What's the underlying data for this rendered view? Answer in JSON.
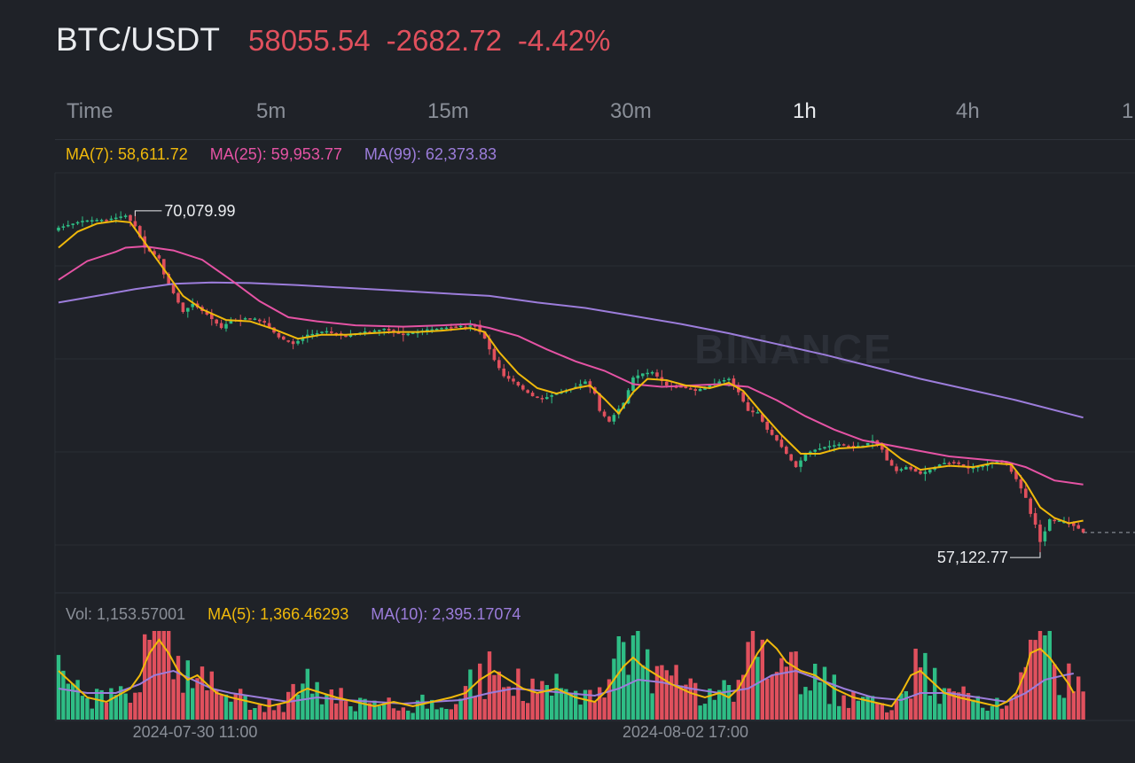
{
  "header": {
    "pair": "BTC/USDT",
    "last_price": "58055.54",
    "change": "-2682.72",
    "change_pct": "-4.42%"
  },
  "tabs": [
    {
      "label": "Time",
      "active": false
    },
    {
      "label": "5m",
      "active": false
    },
    {
      "label": "15m",
      "active": false
    },
    {
      "label": "30m",
      "active": false
    },
    {
      "label": "1h",
      "active": true
    },
    {
      "label": "4h",
      "active": false
    },
    {
      "label": "1",
      "active": false
    }
  ],
  "price_legend": {
    "ma7": "MA(7): 58,611.72",
    "ma25": "MA(25): 59,953.77",
    "ma99": "MA(99): 62,373.83"
  },
  "volume_legend": {
    "vol": "Vol: 1,153.57001",
    "ma5": "MA(5): 1,366.46293",
    "ma10": "MA(10): 2,395.17074"
  },
  "annotations": {
    "high_label": "70,079.99",
    "low_label": "57,122.77"
  },
  "watermark": "BINANCE",
  "colors": {
    "background": "#1f2228",
    "up": "#2ebd85",
    "down": "#e0505d",
    "ma7": "#f0b90b",
    "ma25": "#e553a4",
    "ma99": "#9c7ddb"
  },
  "chart_data": {
    "type": "candlestick",
    "interval": "1h",
    "x_ticks": [
      "2024-07-30 11:00",
      "2024-08-02 17:00"
    ],
    "high": 70079.99,
    "low": 57122.77,
    "last": 58055.54,
    "price_path": [
      [
        0,
        69450
      ],
      [
        5,
        69700
      ],
      [
        10,
        69750
      ],
      [
        14,
        69900
      ],
      [
        16,
        69500
      ],
      [
        18,
        68700
      ],
      [
        21,
        68300
      ],
      [
        22,
        67700
      ],
      [
        24,
        67000
      ],
      [
        26,
        66300
      ],
      [
        28,
        66600
      ],
      [
        31,
        66200
      ],
      [
        34,
        65700
      ],
      [
        36,
        66000
      ],
      [
        40,
        66050
      ],
      [
        43,
        65900
      ],
      [
        46,
        65350
      ],
      [
        49,
        65100
      ],
      [
        52,
        65450
      ],
      [
        56,
        65550
      ],
      [
        60,
        65400
      ],
      [
        64,
        65550
      ],
      [
        68,
        65650
      ],
      [
        72,
        65450
      ],
      [
        76,
        65600
      ],
      [
        80,
        65700
      ],
      [
        84,
        65750
      ],
      [
        87,
        65800
      ],
      [
        89,
        65300
      ],
      [
        91,
        64500
      ],
      [
        93,
        63900
      ],
      [
        95,
        63700
      ],
      [
        97,
        63400
      ],
      [
        99,
        63150
      ],
      [
        101,
        63050
      ],
      [
        104,
        63250
      ],
      [
        106,
        63350
      ],
      [
        108,
        63500
      ],
      [
        110,
        63700
      ],
      [
        112,
        63250
      ],
      [
        113,
        62600
      ],
      [
        115,
        62200
      ],
      [
        116,
        62450
      ],
      [
        118,
        62900
      ],
      [
        120,
        63850
      ],
      [
        122,
        64000
      ],
      [
        124,
        64050
      ],
      [
        127,
        63550
      ],
      [
        130,
        63500
      ],
      [
        133,
        63350
      ],
      [
        136,
        63550
      ],
      [
        138,
        63700
      ],
      [
        140,
        63800
      ],
      [
        142,
        63300
      ],
      [
        144,
        62600
      ],
      [
        146,
        62500
      ],
      [
        148,
        61900
      ],
      [
        150,
        61500
      ],
      [
        152,
        61000
      ],
      [
        154,
        60500
      ],
      [
        156,
        61000
      ],
      [
        158,
        61150
      ],
      [
        160,
        61250
      ],
      [
        163,
        61350
      ],
      [
        166,
        61250
      ],
      [
        168,
        61300
      ],
      [
        170,
        61500
      ],
      [
        172,
        61150
      ],
      [
        173,
        60750
      ],
      [
        175,
        60350
      ],
      [
        177,
        60500
      ],
      [
        180,
        60250
      ],
      [
        182,
        60400
      ],
      [
        184,
        60600
      ],
      [
        187,
        60700
      ],
      [
        190,
        60450
      ],
      [
        193,
        60550
      ],
      [
        196,
        60750
      ],
      [
        198,
        60600
      ],
      [
        200,
        60050
      ],
      [
        202,
        59350
      ],
      [
        203,
        58750
      ],
      [
        204,
        58350
      ],
      [
        205,
        57700
      ],
      [
        206,
        58100
      ],
      [
        207,
        58550
      ],
      [
        209,
        58450
      ],
      [
        211,
        58400
      ],
      [
        213,
        58200
      ],
      [
        214,
        58055.54
      ]
    ],
    "ma7_path": [
      [
        0,
        68700
      ],
      [
        4,
        69300
      ],
      [
        8,
        69600
      ],
      [
        12,
        69700
      ],
      [
        15,
        69650
      ],
      [
        18,
        68900
      ],
      [
        22,
        67900
      ],
      [
        26,
        66900
      ],
      [
        30,
        66400
      ],
      [
        35,
        66000
      ],
      [
        40,
        65950
      ],
      [
        45,
        65650
      ],
      [
        50,
        65300
      ],
      [
        55,
        65450
      ],
      [
        60,
        65450
      ],
      [
        65,
        65500
      ],
      [
        70,
        65550
      ],
      [
        75,
        65550
      ],
      [
        80,
        65600
      ],
      [
        86,
        65700
      ],
      [
        89,
        65550
      ],
      [
        92,
        64800
      ],
      [
        96,
        64000
      ],
      [
        100,
        63450
      ],
      [
        104,
        63250
      ],
      [
        108,
        63450
      ],
      [
        111,
        63550
      ],
      [
        114,
        63050
      ],
      [
        117,
        62500
      ],
      [
        120,
        63300
      ],
      [
        123,
        63800
      ],
      [
        127,
        63750
      ],
      [
        131,
        63550
      ],
      [
        136,
        63450
      ],
      [
        140,
        63650
      ],
      [
        143,
        63350
      ],
      [
        147,
        62500
      ],
      [
        151,
        61700
      ],
      [
        155,
        61000
      ],
      [
        159,
        61000
      ],
      [
        163,
        61200
      ],
      [
        168,
        61250
      ],
      [
        172,
        61350
      ],
      [
        176,
        60800
      ],
      [
        180,
        60400
      ],
      [
        186,
        60550
      ],
      [
        191,
        60500
      ],
      [
        195,
        60650
      ],
      [
        199,
        60600
      ],
      [
        202,
        59900
      ],
      [
        205,
        59000
      ],
      [
        208,
        58600
      ],
      [
        211,
        58400
      ],
      [
        214,
        58500
      ]
    ],
    "ma25_path": [
      [
        0,
        67500
      ],
      [
        6,
        68200
      ],
      [
        12,
        68550
      ],
      [
        14,
        68700
      ],
      [
        18,
        68750
      ],
      [
        24,
        68600
      ],
      [
        30,
        68250
      ],
      [
        36,
        67500
      ],
      [
        42,
        66700
      ],
      [
        48,
        66100
      ],
      [
        54,
        65950
      ],
      [
        62,
        65800
      ],
      [
        72,
        65750
      ],
      [
        80,
        65800
      ],
      [
        86,
        65850
      ],
      [
        90,
        65700
      ],
      [
        96,
        65400
      ],
      [
        102,
        64900
      ],
      [
        108,
        64450
      ],
      [
        114,
        64100
      ],
      [
        120,
        63600
      ],
      [
        126,
        63500
      ],
      [
        132,
        63550
      ],
      [
        138,
        63600
      ],
      [
        144,
        63500
      ],
      [
        150,
        63000
      ],
      [
        156,
        62400
      ],
      [
        162,
        61900
      ],
      [
        168,
        61500
      ],
      [
        174,
        61300
      ],
      [
        180,
        61100
      ],
      [
        186,
        60900
      ],
      [
        192,
        60800
      ],
      [
        198,
        60700
      ],
      [
        202,
        60500
      ],
      [
        208,
        60000
      ],
      [
        214,
        59850
      ]
    ],
    "ma99_path": [
      [
        0,
        66650
      ],
      [
        8,
        66900
      ],
      [
        16,
        67150
      ],
      [
        24,
        67350
      ],
      [
        32,
        67400
      ],
      [
        40,
        67380
      ],
      [
        50,
        67300
      ],
      [
        60,
        67200
      ],
      [
        70,
        67100
      ],
      [
        80,
        67000
      ],
      [
        90,
        66900
      ],
      [
        100,
        66650
      ],
      [
        110,
        66450
      ],
      [
        120,
        66150
      ],
      [
        130,
        65850
      ],
      [
        140,
        65500
      ],
      [
        150,
        65100
      ],
      [
        160,
        64700
      ],
      [
        170,
        64250
      ],
      [
        180,
        63800
      ],
      [
        190,
        63400
      ],
      [
        200,
        63000
      ],
      [
        214,
        62350
      ]
    ],
    "volume_ma5_path": [
      [
        0,
        0.55
      ],
      [
        3,
        0.4
      ],
      [
        6,
        0.25
      ],
      [
        10,
        0.2
      ],
      [
        15,
        0.35
      ],
      [
        17,
        0.5
      ],
      [
        19,
        0.75
      ],
      [
        21,
        0.9
      ],
      [
        23,
        0.75
      ],
      [
        25,
        0.55
      ],
      [
        27,
        0.45
      ],
      [
        29,
        0.5
      ],
      [
        31,
        0.4
      ],
      [
        33,
        0.3
      ],
      [
        36,
        0.25
      ],
      [
        40,
        0.2
      ],
      [
        44,
        0.15
      ],
      [
        48,
        0.2
      ],
      [
        50,
        0.3
      ],
      [
        52,
        0.35
      ],
      [
        55,
        0.3
      ],
      [
        58,
        0.25
      ],
      [
        62,
        0.2
      ],
      [
        66,
        0.15
      ],
      [
        70,
        0.2
      ],
      [
        74,
        0.15
      ],
      [
        78,
        0.2
      ],
      [
        82,
        0.25
      ],
      [
        85,
        0.3
      ],
      [
        88,
        0.45
      ],
      [
        91,
        0.55
      ],
      [
        94,
        0.45
      ],
      [
        97,
        0.35
      ],
      [
        100,
        0.3
      ],
      [
        104,
        0.35
      ],
      [
        108,
        0.25
      ],
      [
        112,
        0.2
      ],
      [
        114,
        0.3
      ],
      [
        116,
        0.45
      ],
      [
        118,
        0.6
      ],
      [
        120,
        0.7
      ],
      [
        122,
        0.6
      ],
      [
        125,
        0.5
      ],
      [
        128,
        0.4
      ],
      [
        132,
        0.3
      ],
      [
        135,
        0.25
      ],
      [
        138,
        0.3
      ],
      [
        140,
        0.25
      ],
      [
        142,
        0.35
      ],
      [
        144,
        0.55
      ],
      [
        146,
        0.75
      ],
      [
        148,
        0.9
      ],
      [
        150,
        0.8
      ],
      [
        152,
        0.65
      ],
      [
        155,
        0.55
      ],
      [
        158,
        0.5
      ],
      [
        162,
        0.35
      ],
      [
        166,
        0.25
      ],
      [
        170,
        0.2
      ],
      [
        174,
        0.15
      ],
      [
        176,
        0.3
      ],
      [
        178,
        0.5
      ],
      [
        180,
        0.55
      ],
      [
        182,
        0.45
      ],
      [
        185,
        0.3
      ],
      [
        188,
        0.25
      ],
      [
        192,
        0.2
      ],
      [
        196,
        0.15
      ],
      [
        198,
        0.2
      ],
      [
        200,
        0.3
      ],
      [
        202,
        0.55
      ],
      [
        203,
        0.75
      ],
      [
        205,
        0.8
      ],
      [
        207,
        0.7
      ],
      [
        209,
        0.55
      ],
      [
        211,
        0.4
      ],
      [
        212,
        0.3
      ]
    ],
    "volume_ma10_path": [
      [
        0,
        0.35
      ],
      [
        6,
        0.3
      ],
      [
        12,
        0.3
      ],
      [
        17,
        0.4
      ],
      [
        20,
        0.5
      ],
      [
        24,
        0.55
      ],
      [
        28,
        0.45
      ],
      [
        32,
        0.35
      ],
      [
        36,
        0.3
      ],
      [
        42,
        0.25
      ],
      [
        48,
        0.2
      ],
      [
        54,
        0.25
      ],
      [
        60,
        0.22
      ],
      [
        66,
        0.2
      ],
      [
        72,
        0.18
      ],
      [
        78,
        0.2
      ],
      [
        84,
        0.22
      ],
      [
        90,
        0.3
      ],
      [
        95,
        0.35
      ],
      [
        100,
        0.33
      ],
      [
        106,
        0.3
      ],
      [
        112,
        0.27
      ],
      [
        117,
        0.35
      ],
      [
        121,
        0.45
      ],
      [
        126,
        0.42
      ],
      [
        132,
        0.35
      ],
      [
        138,
        0.3
      ],
      [
        144,
        0.35
      ],
      [
        149,
        0.5
      ],
      [
        154,
        0.55
      ],
      [
        159,
        0.45
      ],
      [
        164,
        0.35
      ],
      [
        170,
        0.25
      ],
      [
        176,
        0.22
      ],
      [
        180,
        0.3
      ],
      [
        186,
        0.3
      ],
      [
        192,
        0.25
      ],
      [
        198,
        0.2
      ],
      [
        202,
        0.3
      ],
      [
        206,
        0.45
      ],
      [
        210,
        0.5
      ],
      [
        212,
        0.52
      ]
    ]
  }
}
